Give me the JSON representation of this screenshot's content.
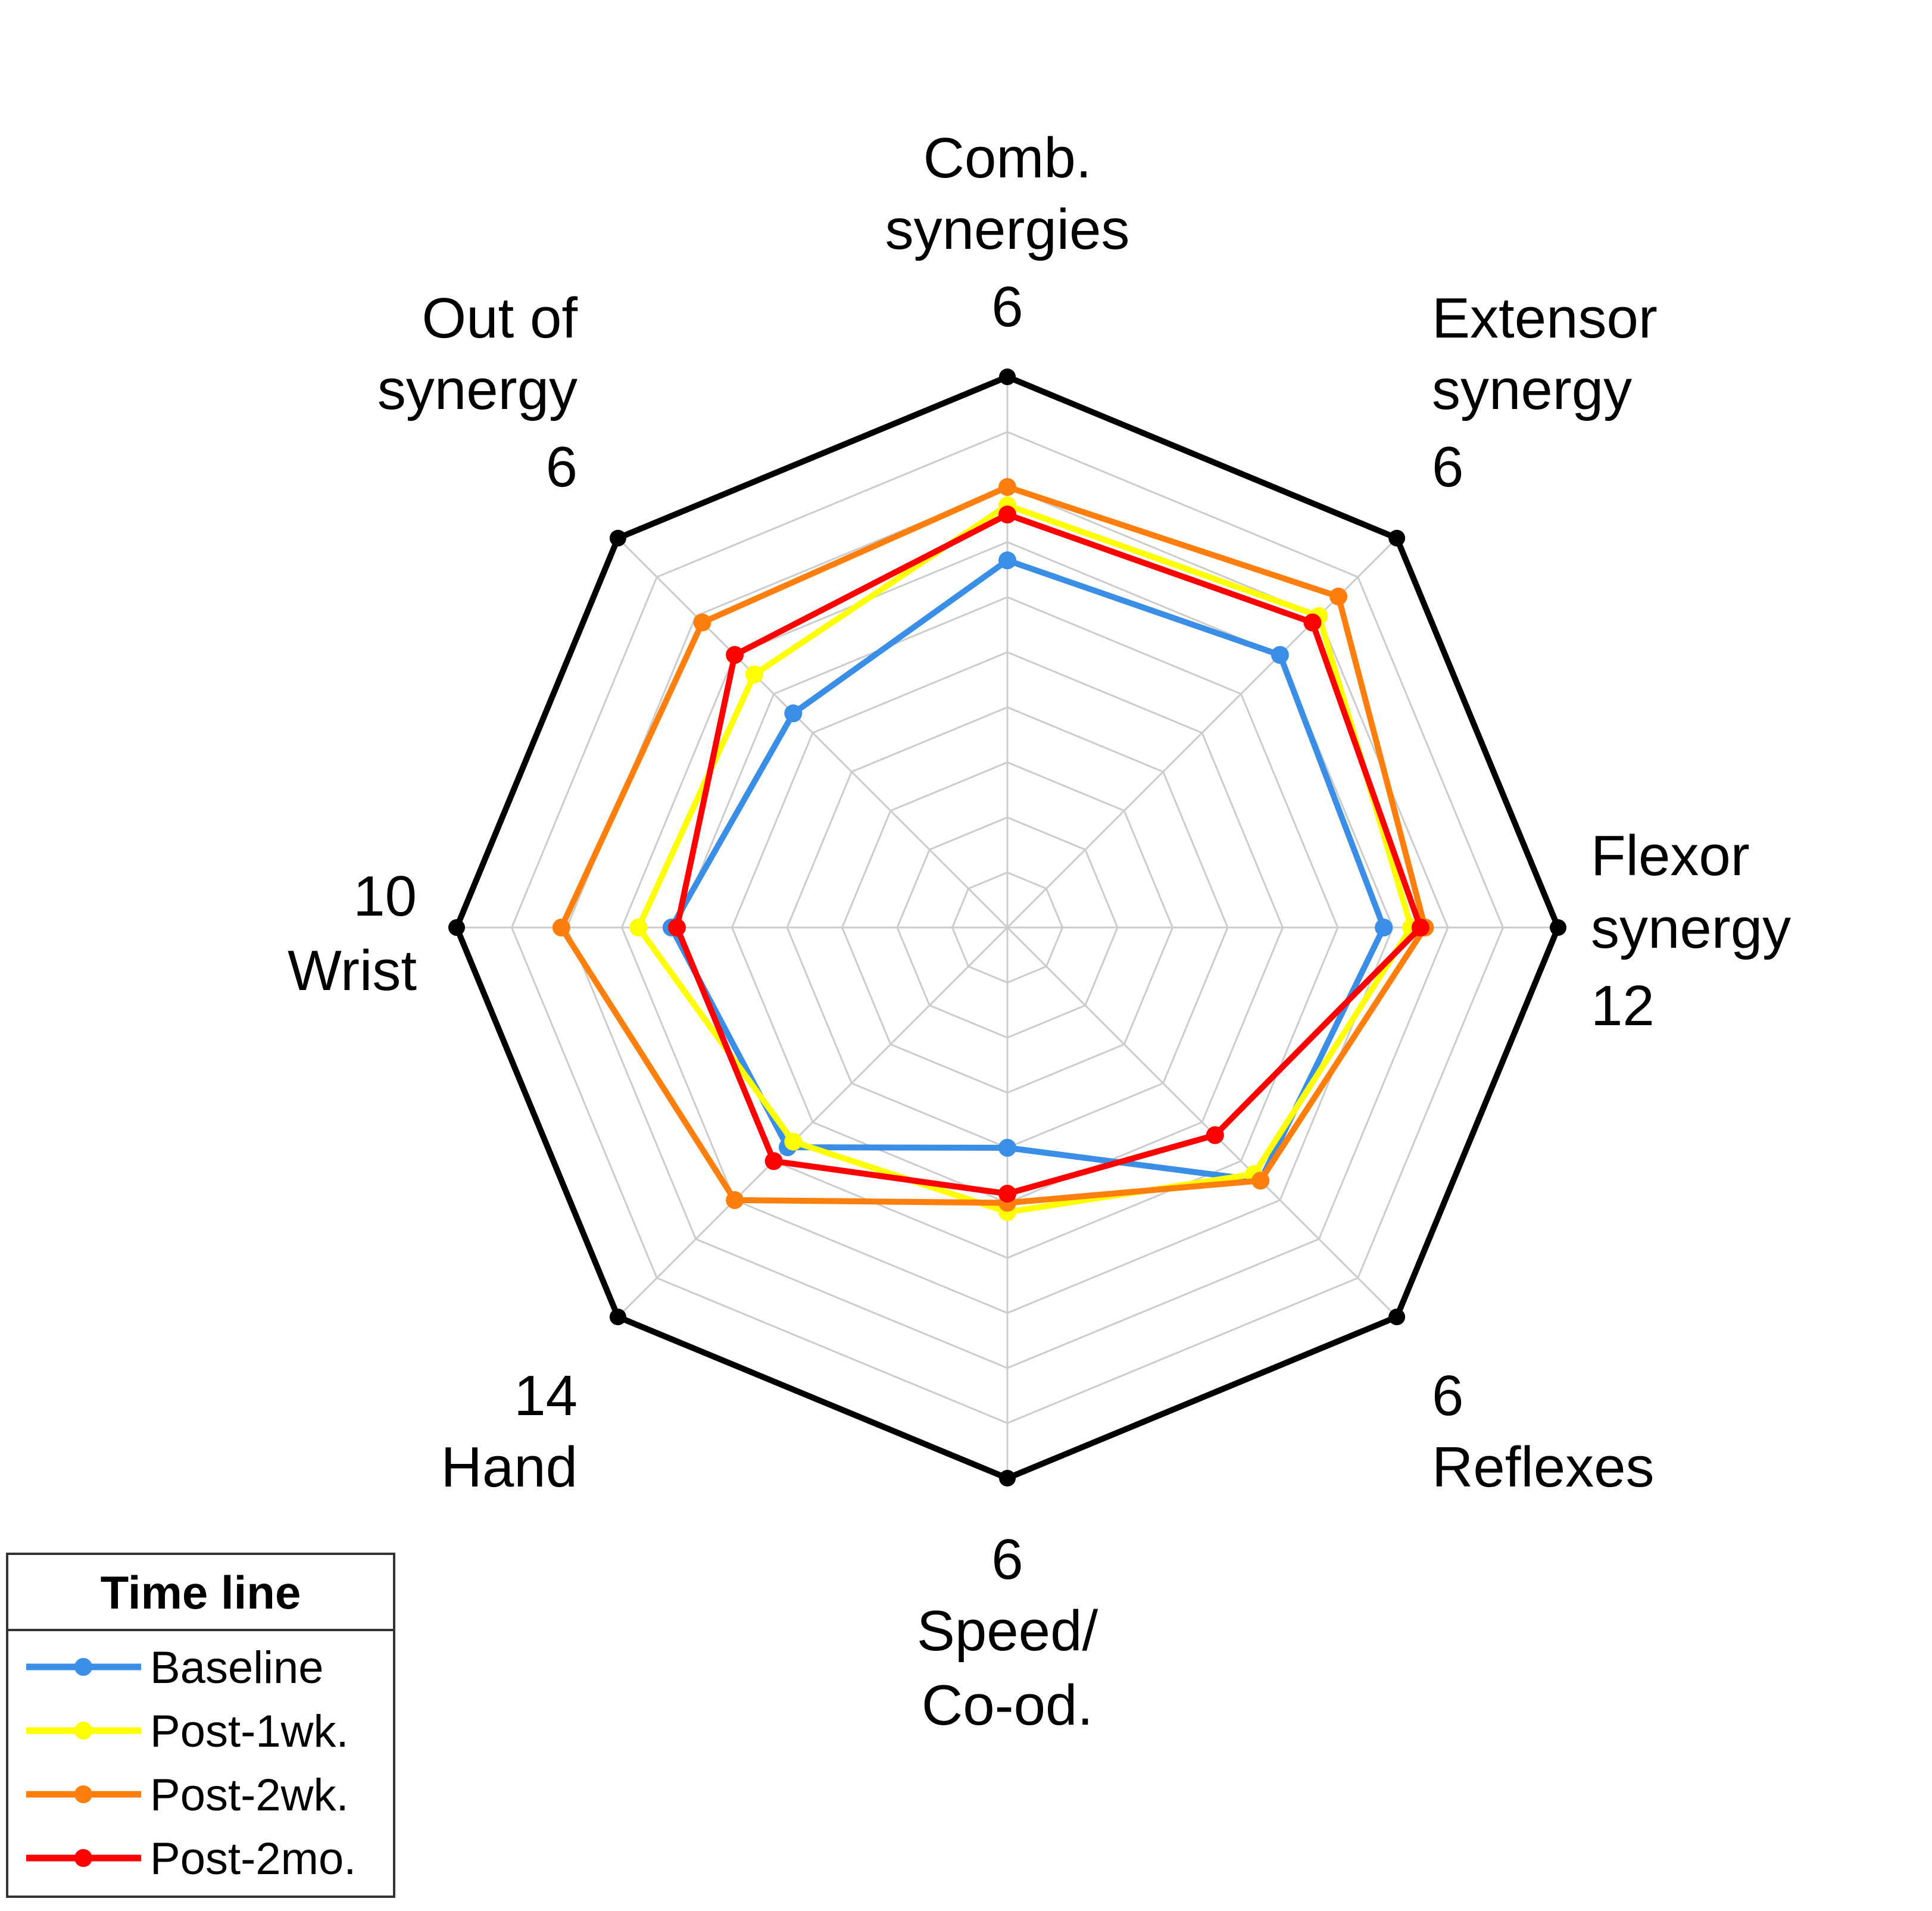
{
  "chart_data": {
    "type": "radar",
    "axes": [
      {
        "line1": "Comb.",
        "line2": "synergies",
        "max": 6,
        "max_label": "6"
      },
      {
        "line1": "Extensor",
        "line2": "synergy",
        "max": 6,
        "max_label": "6"
      },
      {
        "line1": "Flexor",
        "line2": "synergy",
        "max": 12,
        "max_label": "12"
      },
      {
        "line1": "Reflexes",
        "max": 6,
        "max_label": "6"
      },
      {
        "line1": "Speed/",
        "line2": "Co-od.",
        "max": 6,
        "max_label": "6"
      },
      {
        "line1": "Hand",
        "max": 14,
        "max_label": "14"
      },
      {
        "line1": "Wrist",
        "max": 10,
        "max_label": "10"
      },
      {
        "line1": "Out of",
        "line2": "synergy",
        "max": 6,
        "max_label": "6"
      }
    ],
    "series": [
      {
        "name": "Baseline",
        "color": "#3a8ee6",
        "values": [
          4.0,
          4.2,
          8.2,
          3.9,
          2.4,
          7.9,
          6.1,
          3.3
        ]
      },
      {
        "name": "Post-1wk.",
        "color": "#ffff00",
        "values": [
          4.6,
          4.8,
          8.8,
          3.8,
          3.1,
          7.7,
          6.7,
          3.9
        ]
      },
      {
        "name": "Post-2wk.",
        "color": "#ff7f0e",
        "values": [
          4.8,
          5.1,
          9.1,
          3.9,
          3.0,
          9.8,
          8.1,
          4.7
        ]
      },
      {
        "name": "Post-2mo.",
        "color": "#ff0000",
        "values": [
          4.5,
          4.7,
          9.0,
          3.2,
          2.9,
          8.4,
          6.0,
          4.2
        ]
      }
    ],
    "grid_levels": 10,
    "grid": true,
    "legend": {
      "title": "Time line",
      "position": "bottom-left"
    }
  }
}
